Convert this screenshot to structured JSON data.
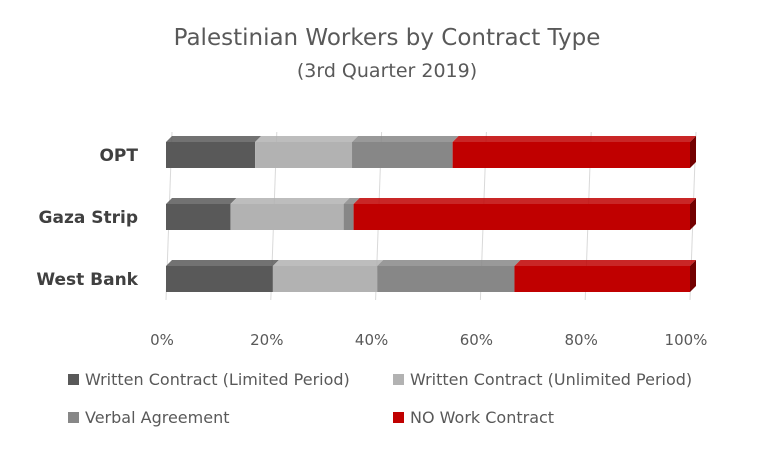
{
  "chart_data": {
    "type": "bar",
    "orientation": "horizontal",
    "stacked": true,
    "percent_stacked": true,
    "title": "Palestinian Workers by Contract Type",
    "subtitle": "(3rd Quarter 2019)",
    "categories": [
      "OPT",
      "Gaza Strip",
      "West Bank"
    ],
    "xlim": [
      0,
      100
    ],
    "x_ticks": [
      "0%",
      "20%",
      "40%",
      "60%",
      "80%",
      "100%"
    ],
    "grid": true,
    "legend_position": "bottom",
    "series": [
      {
        "name": "Written Contract (Limited Period)",
        "color": "#595959",
        "values": [
          17,
          12.3,
          20.4
        ]
      },
      {
        "name": "Written Contract (Unlimited Period)",
        "color": "#b2b2b2",
        "values": [
          18.5,
          21.6,
          19.9
        ]
      },
      {
        "name": "Verbal Agreement",
        "color": "#878787",
        "values": [
          19.2,
          1.9,
          26.2
        ]
      },
      {
        "name": "NO Work Contract",
        "color": "#c00000",
        "values": [
          45.3,
          64.2,
          33.5
        ]
      }
    ]
  }
}
